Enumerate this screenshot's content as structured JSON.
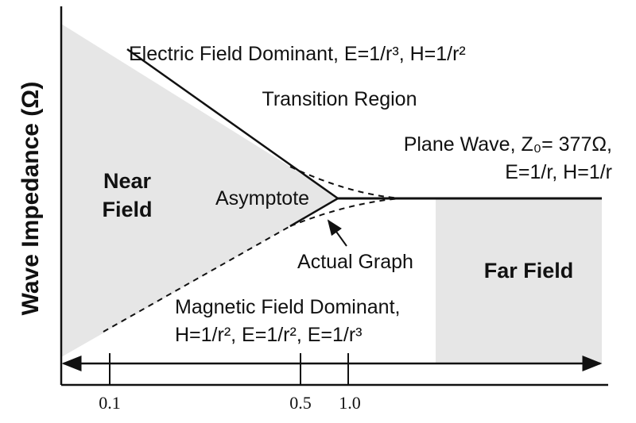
{
  "axis": {
    "y_label": "Wave Impedance (Ω)",
    "x_ticks": [
      "0.1",
      "0.5",
      "1.0"
    ]
  },
  "regions": {
    "near_field": [
      "Near",
      "Field"
    ],
    "far_field": "Far Field",
    "transition": "Transition Region"
  },
  "annotations": {
    "electric": "Electric Field Dominant, E=1/r³, H=1/r²",
    "plane_wave": [
      "Plane Wave, Z₀= 377Ω,",
      "E=1/r, H=1/r"
    ],
    "asymptote": "Asymptote",
    "actual_graph": "Actual Graph",
    "magnetic": [
      "Magnetic Field Dominant,",
      "H=1/r², E=1/r², E=1/r³"
    ]
  }
}
